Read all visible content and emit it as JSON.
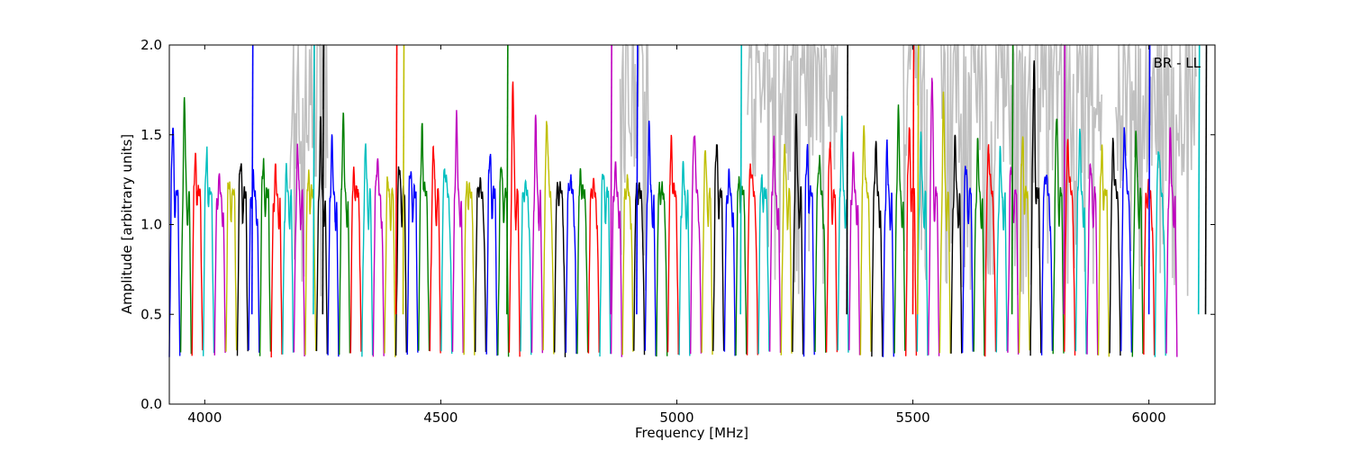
{
  "chart_data": {
    "type": "line",
    "title": "",
    "annotation": "BR - LL",
    "xlabel": "Frequency [MHz]",
    "ylabel": "Amplitude [arbitrary units]",
    "xlim": [
      3925,
      6140
    ],
    "ylim": [
      0.0,
      2.0
    ],
    "x_ticks": [
      4000,
      4500,
      5000,
      5500,
      6000
    ],
    "y_ticks": [
      0.0,
      0.5,
      1.0,
      1.5,
      2.0
    ],
    "x_tick_labels": [
      "4000",
      "4500",
      "5000",
      "5500",
      "6000"
    ],
    "y_tick_labels": [
      "0.0",
      "0.5",
      "1.0",
      "1.5",
      "2.0"
    ],
    "grid": false,
    "series_colors": [
      "#0000ff",
      "#008000",
      "#ff0000",
      "#00bfbf",
      "#bf00bf",
      "#bfbf00",
      "#000000"
    ],
    "background_color": "#c0c0c0",
    "channel_width_mhz": 16,
    "channel_start_mhz": 3925,
    "channel_peaks": [
      1.55,
      1.65,
      1.43,
      1.44,
      1.27,
      1.23,
      1.34,
      1.29,
      1.36,
      1.3,
      1.25,
      1.37,
      1.31,
      1.57,
      1.47,
      1.63,
      1.36,
      1.39,
      1.45,
      1.2,
      1.3,
      1.28,
      1.6,
      1.38,
      1.43,
      1.6,
      1.28,
      1.33,
      1.4,
      1.3,
      1.73,
      1.3,
      1.55,
      1.72,
      1.3,
      1.34,
      1.36,
      1.3,
      1.28,
      1.37,
      1.3,
      1.3,
      1.55,
      1.3,
      1.53,
      1.3,
      1.65,
      1.38,
      1.46,
      1.3,
      1.3,
      1.45,
      1.3,
      1.48,
      1.38,
      1.55,
      1.45,
      1.46,
      1.45,
      1.58,
      1.38,
      1.64,
      1.5,
      1.4,
      1.65,
      1.55,
      1.43,
      1.82,
      1.65,
      1.45,
      1.3,
      1.45,
      1.55,
      1.35,
      1.3,
      1.5,
      1.93,
      1.4,
      1.6,
      1.55,
      1.55,
      1.3,
      1.45,
      1.55,
      1.65,
      1.45,
      1.25,
      1.55,
      1.5
    ],
    "tall_spikes_mhz": [
      4100,
      4230,
      4250,
      4405,
      4420,
      4640,
      4860,
      4915,
      5135,
      5360,
      5500,
      5510,
      5710,
      5820,
      6000,
      6105,
      6120
    ]
  }
}
